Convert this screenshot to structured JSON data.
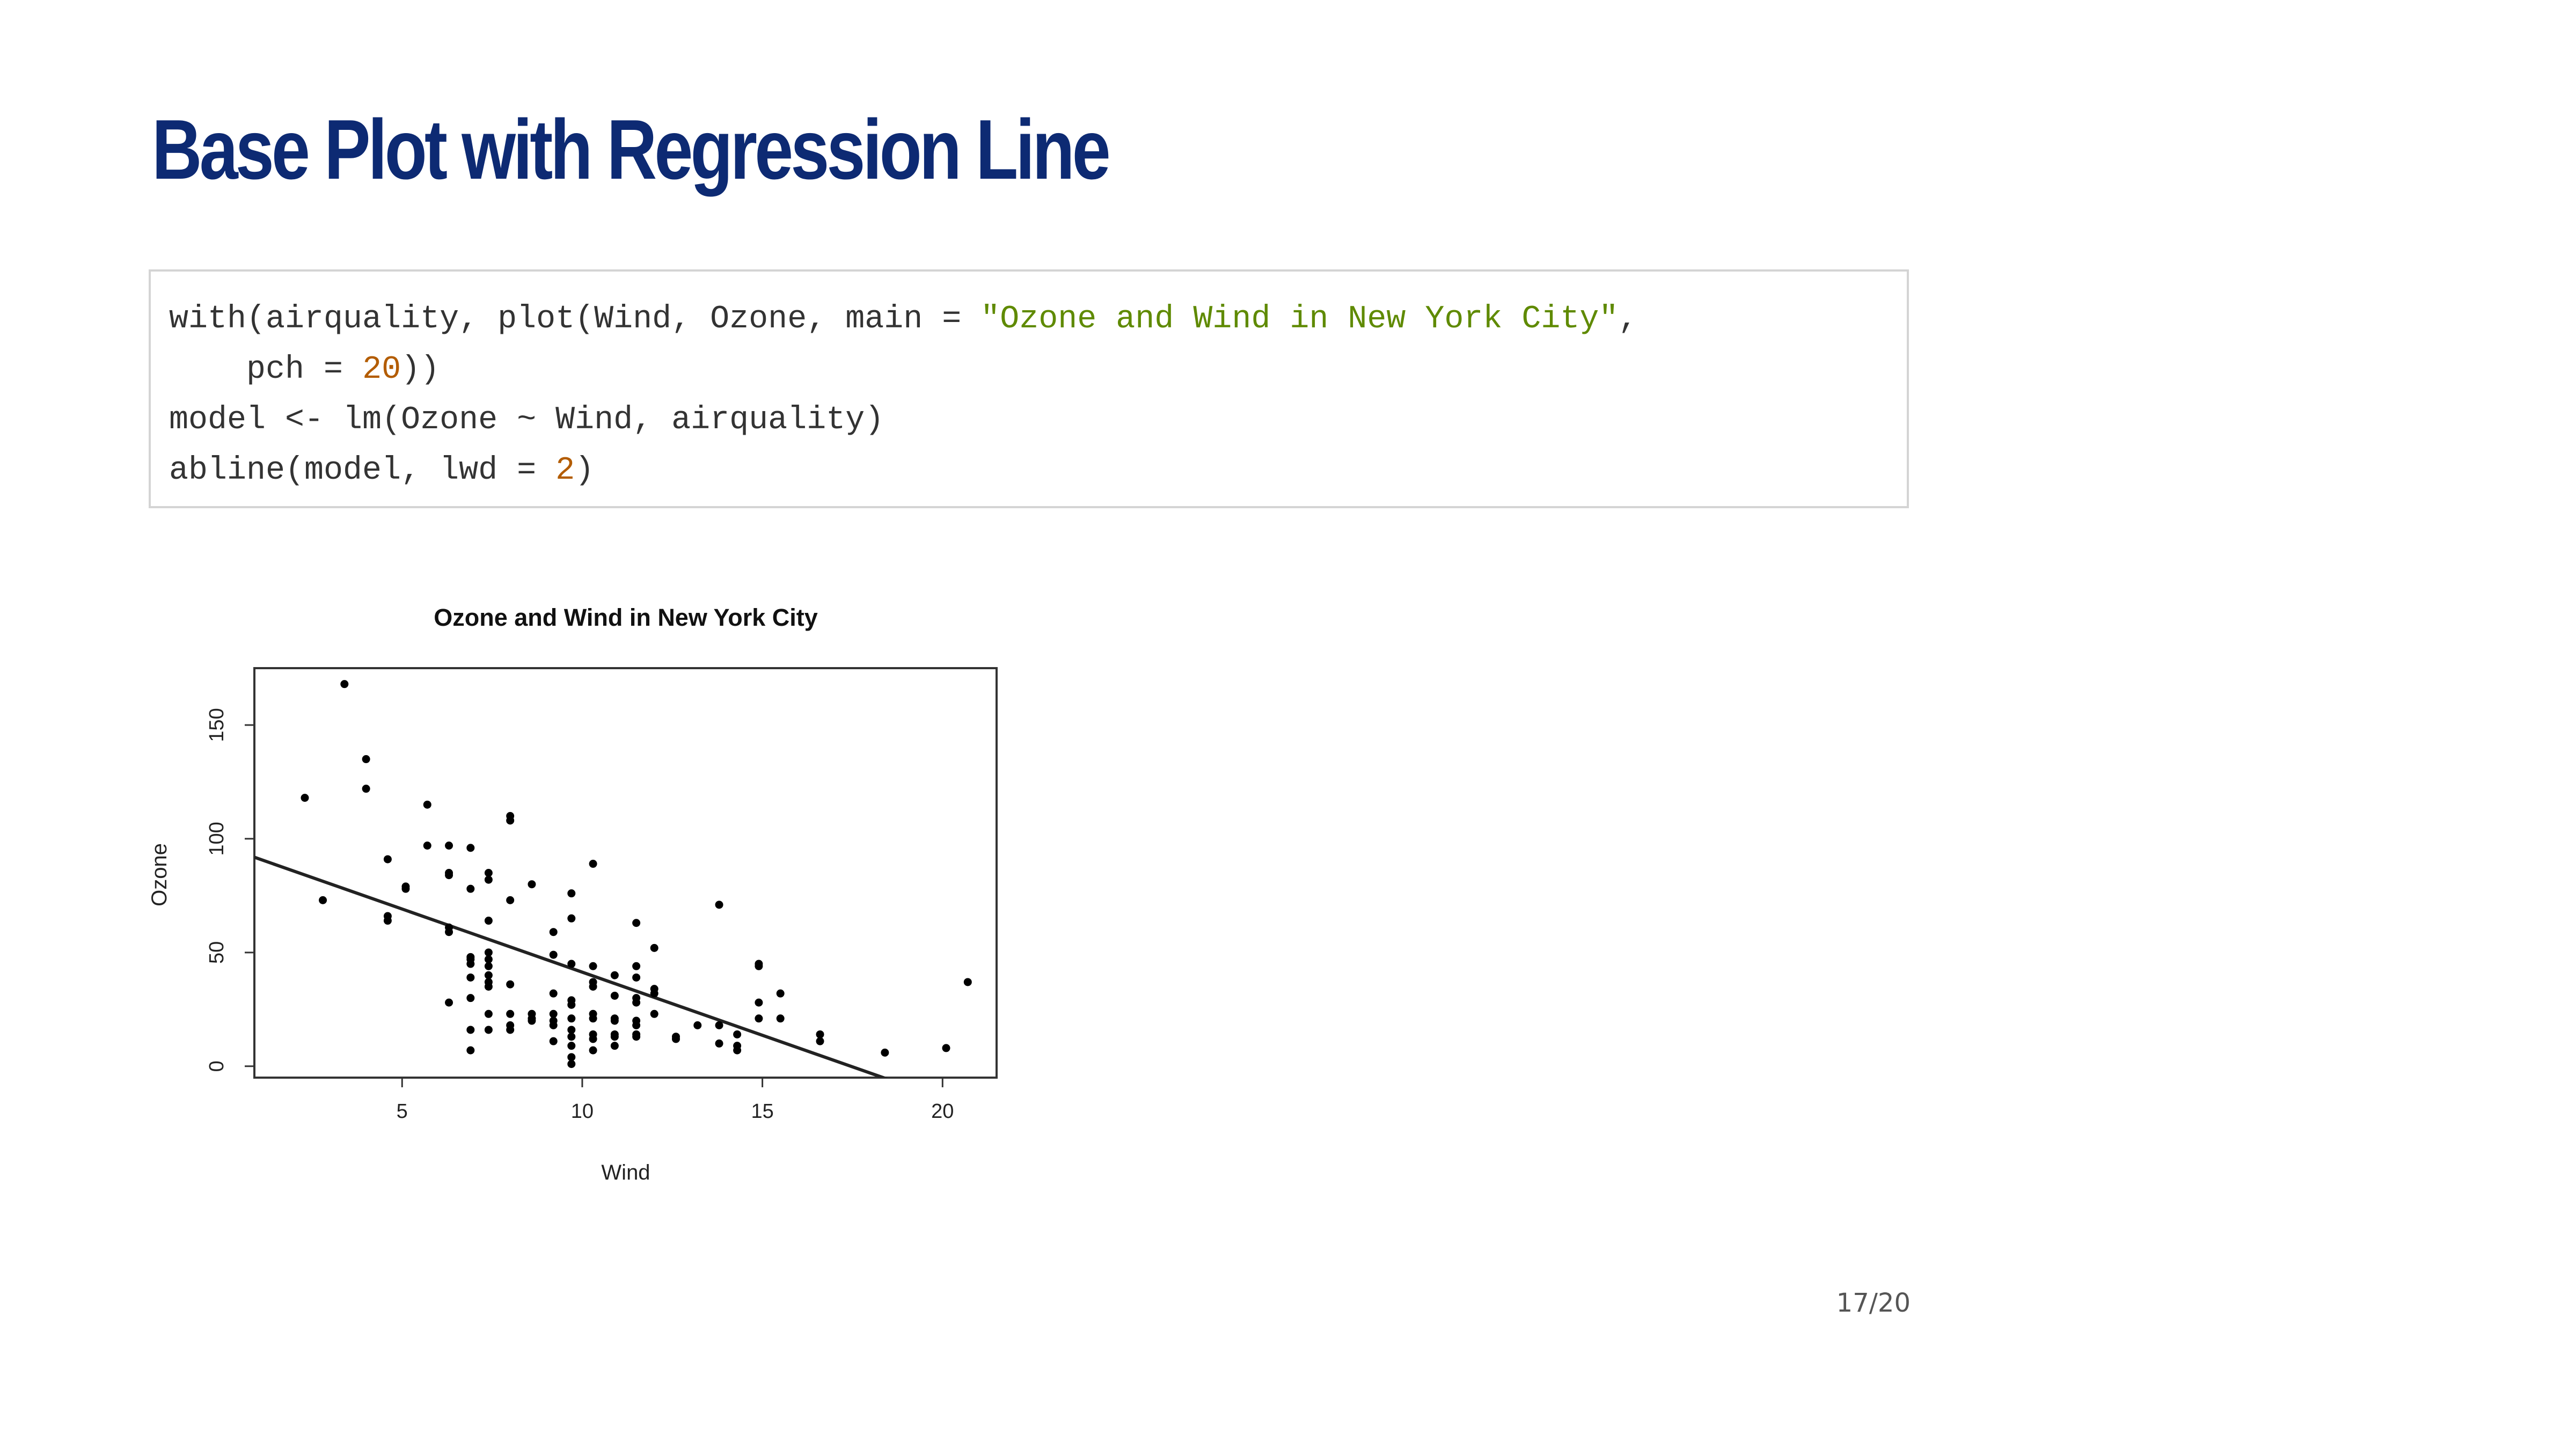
{
  "slide": {
    "title": "Base Plot with Regression Line",
    "page_number": "17/20",
    "title_color": "#0d2a73"
  },
  "code": {
    "lines": [
      [
        {
          "text": "with(airquality, plot(Wind, Ozone, main = ",
          "type": "plain"
        },
        {
          "text": "\"Ozone and Wind in New York City\"",
          "type": "string"
        },
        {
          "text": ",",
          "type": "plain"
        }
      ],
      [
        {
          "text": "    pch = ",
          "type": "plain"
        },
        {
          "text": "20",
          "type": "number"
        },
        {
          "text": "))",
          "type": "plain"
        }
      ],
      [
        {
          "text": "model <- lm(Ozone ~ Wind, airquality)",
          "type": "plain"
        }
      ],
      [
        {
          "text": "abline(model, lwd = ",
          "type": "plain"
        },
        {
          "text": "2",
          "type": "number"
        },
        {
          "text": ")",
          "type": "plain"
        }
      ]
    ]
  },
  "chart_data": {
    "type": "scatter",
    "title": "Ozone and Wind in New York City",
    "xlabel": "Wind",
    "ylabel": "Ozone",
    "xlim": [
      0.9,
      21.5
    ],
    "ylim": [
      -5,
      175
    ],
    "xticks": [
      5,
      10,
      15,
      20
    ],
    "yticks": [
      0,
      50,
      100,
      150
    ],
    "grid": false,
    "legend": "none",
    "point_color": "#000000",
    "line_color": "#222222",
    "regression_line": {
      "intercept": 96.87,
      "slope": -5.55
    },
    "points": [
      [
        2.3,
        118
      ],
      [
        2.8,
        73
      ],
      [
        3.4,
        168
      ],
      [
        4.0,
        135
      ],
      [
        4.0,
        122
      ],
      [
        4.6,
        91
      ],
      [
        4.6,
        66
      ],
      [
        4.6,
        64
      ],
      [
        5.1,
        79
      ],
      [
        5.1,
        78
      ],
      [
        5.7,
        115
      ],
      [
        5.7,
        97
      ],
      [
        6.3,
        97
      ],
      [
        6.3,
        85
      ],
      [
        6.3,
        84
      ],
      [
        6.3,
        61
      ],
      [
        6.3,
        59
      ],
      [
        6.3,
        28
      ],
      [
        6.9,
        96
      ],
      [
        6.9,
        78
      ],
      [
        6.9,
        48
      ],
      [
        6.9,
        47
      ],
      [
        6.9,
        45
      ],
      [
        6.9,
        39
      ],
      [
        6.9,
        30
      ],
      [
        6.9,
        16
      ],
      [
        6.9,
        7
      ],
      [
        7.4,
        85
      ],
      [
        7.4,
        82
      ],
      [
        7.4,
        64
      ],
      [
        7.4,
        50
      ],
      [
        7.4,
        47
      ],
      [
        7.4,
        44
      ],
      [
        7.4,
        40
      ],
      [
        7.4,
        37
      ],
      [
        7.4,
        35
      ],
      [
        7.4,
        23
      ],
      [
        7.4,
        16
      ],
      [
        8.0,
        110
      ],
      [
        8.0,
        108
      ],
      [
        8.0,
        73
      ],
      [
        8.0,
        36
      ],
      [
        8.0,
        23
      ],
      [
        8.0,
        18
      ],
      [
        8.0,
        16
      ],
      [
        8.6,
        80
      ],
      [
        8.6,
        23
      ],
      [
        8.6,
        21
      ],
      [
        8.6,
        20
      ],
      [
        9.2,
        59
      ],
      [
        9.2,
        49
      ],
      [
        9.2,
        32
      ],
      [
        9.2,
        23
      ],
      [
        9.2,
        20
      ],
      [
        9.2,
        18
      ],
      [
        9.2,
        11
      ],
      [
        9.7,
        76
      ],
      [
        9.7,
        65
      ],
      [
        9.7,
        45
      ],
      [
        9.7,
        29
      ],
      [
        9.7,
        27
      ],
      [
        9.7,
        21
      ],
      [
        9.7,
        16
      ],
      [
        9.7,
        13
      ],
      [
        9.7,
        9
      ],
      [
        9.7,
        4
      ],
      [
        9.7,
        1
      ],
      [
        10.3,
        89
      ],
      [
        10.3,
        44
      ],
      [
        10.3,
        37
      ],
      [
        10.3,
        35
      ],
      [
        10.3,
        23
      ],
      [
        10.3,
        21
      ],
      [
        10.3,
        14
      ],
      [
        10.3,
        12
      ],
      [
        10.3,
        7
      ],
      [
        10.9,
        40
      ],
      [
        10.9,
        31
      ],
      [
        10.9,
        21
      ],
      [
        10.9,
        20
      ],
      [
        10.9,
        14
      ],
      [
        10.9,
        13
      ],
      [
        10.9,
        9
      ],
      [
        11.5,
        63
      ],
      [
        11.5,
        44
      ],
      [
        11.5,
        39
      ],
      [
        11.5,
        30
      ],
      [
        11.5,
        28
      ],
      [
        11.5,
        20
      ],
      [
        11.5,
        18
      ],
      [
        11.5,
        14
      ],
      [
        11.5,
        13
      ],
      [
        12.0,
        52
      ],
      [
        12.0,
        34
      ],
      [
        12.0,
        32
      ],
      [
        12.0,
        23
      ],
      [
        12.6,
        13
      ],
      [
        12.6,
        12
      ],
      [
        13.2,
        18
      ],
      [
        13.8,
        71
      ],
      [
        13.8,
        18
      ],
      [
        13.8,
        10
      ],
      [
        14.3,
        14
      ],
      [
        14.3,
        9
      ],
      [
        14.3,
        7
      ],
      [
        14.9,
        45
      ],
      [
        14.9,
        44
      ],
      [
        14.9,
        28
      ],
      [
        14.9,
        21
      ],
      [
        15.5,
        32
      ],
      [
        15.5,
        21
      ],
      [
        16.6,
        14
      ],
      [
        16.6,
        11
      ],
      [
        18.4,
        6
      ],
      [
        20.1,
        8
      ],
      [
        20.7,
        37
      ]
    ]
  }
}
